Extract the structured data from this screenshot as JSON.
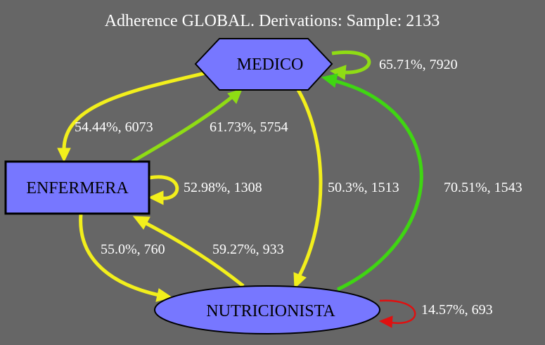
{
  "title": "Adherence GLOBAL. Derivations: Sample: 2133",
  "nodes": {
    "medico": {
      "label": "MEDICO",
      "shape": "hexagon",
      "fill": "#7777ff"
    },
    "enfermera": {
      "label": "ENFERMERA",
      "shape": "rectangle",
      "fill": "#7777ff"
    },
    "nutricionista": {
      "label": "NUTRICIONISTA",
      "shape": "ellipse",
      "fill": "#7777ff"
    }
  },
  "edges": {
    "medico_medico": {
      "from": "MEDICO",
      "to": "MEDICO",
      "label": "65.71%, 7920",
      "color": "#8fdc14"
    },
    "medico_enfermera": {
      "from": "MEDICO",
      "to": "ENFERMERA",
      "label": "54.44%, 6073",
      "color": "#f2ef1c"
    },
    "enfermera_medico": {
      "from": "ENFERMERA",
      "to": "MEDICO",
      "label": "61.73%, 5754",
      "color": "#8fdc14"
    },
    "enfermera_enfermera": {
      "from": "ENFERMERA",
      "to": "ENFERMERA",
      "label": "52.98%, 1308",
      "color": "#f2ef1c"
    },
    "medico_nutricionista": {
      "from": "MEDICO",
      "to": "NUTRICIONISTA",
      "label": "50.3%, 1513",
      "color": "#f2ef1c"
    },
    "nutricionista_medico": {
      "from": "NUTRICIONISTA",
      "to": "MEDICO",
      "label": "70.51%, 1543",
      "color": "#3fd612"
    },
    "enfermera_nutricionista": {
      "from": "ENFERMERA",
      "to": "NUTRICIONISTA",
      "label": "55.0%, 760",
      "color": "#f2ef1c"
    },
    "nutricionista_enfermera": {
      "from": "NUTRICIONISTA",
      "to": "ENFERMERA",
      "label": "59.27%, 933",
      "color": "#f2ef1c"
    },
    "nutricionista_nutricionista": {
      "from": "NUTRICIONISTA",
      "to": "NUTRICIONISTA",
      "label": "14.57%, 693",
      "color": "#e01010"
    }
  }
}
